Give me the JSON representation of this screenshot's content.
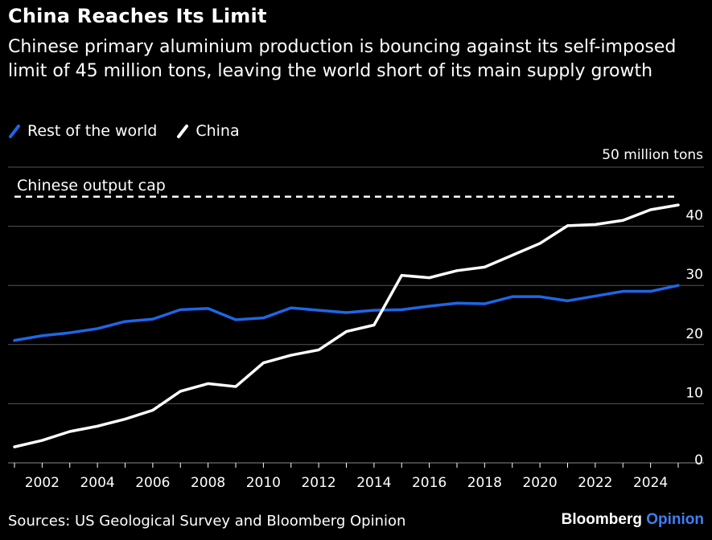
{
  "title": "China Reaches Its Limit",
  "subtitle": "Chinese primary aluminium production is bouncing against its self-imposed limit of 45 million tons, leaving the world short of its main supply growth",
  "legend": [
    {
      "name": "Rest of the world",
      "color": "#1f66e6"
    },
    {
      "name": "China",
      "color": "#ffffff"
    }
  ],
  "source": "Sources: US Geological Survey and Bloomberg Opinion",
  "brand": {
    "part1": "Bloomberg",
    "part2": "Opinion"
  },
  "chart_data": {
    "type": "line",
    "x": [
      2001,
      2002,
      2003,
      2004,
      2005,
      2006,
      2007,
      2008,
      2009,
      2010,
      2011,
      2012,
      2013,
      2014,
      2015,
      2016,
      2017,
      2018,
      2019,
      2020,
      2021,
      2022,
      2023,
      2024,
      2025
    ],
    "series": [
      {
        "name": "Rest of the world",
        "color": "#1f66e6",
        "values": [
          20.7,
          21.5,
          22.0,
          22.7,
          23.9,
          24.3,
          25.9,
          26.1,
          24.2,
          24.5,
          26.2,
          25.8,
          25.4,
          25.8,
          25.9,
          26.5,
          27.0,
          26.9,
          28.1,
          28.1,
          27.4,
          28.2,
          29.0,
          29.0,
          30.0
        ]
      },
      {
        "name": "China",
        "color": "#ffffff",
        "values": [
          2.7,
          3.8,
          5.3,
          6.2,
          7.4,
          8.9,
          12.1,
          13.4,
          12.9,
          16.9,
          18.2,
          19.1,
          22.2,
          23.3,
          31.7,
          31.3,
          32.5,
          33.1,
          35.1,
          37.1,
          40.1,
          40.3,
          41.0,
          42.8,
          43.6
        ]
      }
    ],
    "cap": {
      "label": "Chinese output cap",
      "value": 45
    },
    "y_unit_label": "50 million tons",
    "yticks": [
      0,
      10,
      20,
      30,
      40
    ],
    "xticks": [
      2002,
      2004,
      2006,
      2008,
      2010,
      2012,
      2014,
      2016,
      2018,
      2020,
      2022,
      2024
    ],
    "ylim": [
      0,
      50
    ],
    "xlim": [
      2001,
      2025
    ],
    "grid": true
  }
}
